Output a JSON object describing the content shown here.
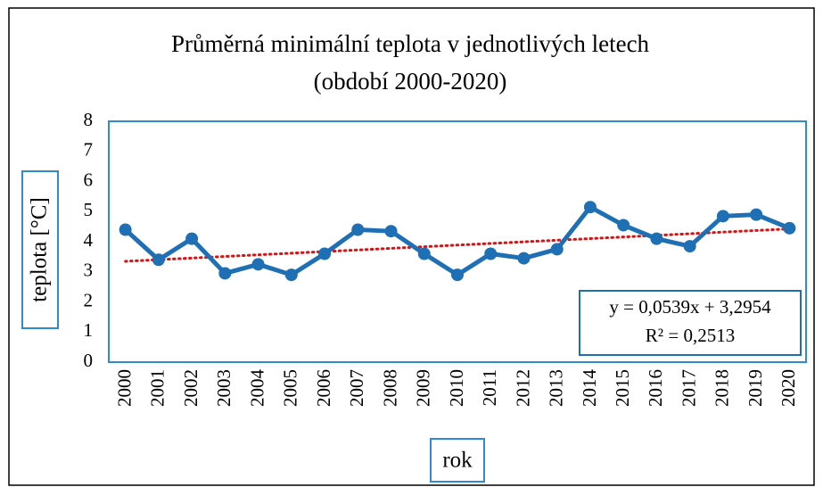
{
  "chart_data": {
    "type": "line",
    "title": "Průměrná minimální teplota v jednotlivých letech",
    "subtitle": "(období 2000-2020)",
    "y_label": "teplota [°C]",
    "x_label": "rok",
    "categories": [
      "2000",
      "2001",
      "2002",
      "2003",
      "2004",
      "2005",
      "2006",
      "2007",
      "2008",
      "2009",
      "2010",
      "2011",
      "2012",
      "2013",
      "2014",
      "2015",
      "2016",
      "2017",
      "2018",
      "2019",
      "2020"
    ],
    "series": [
      {
        "name": "teplota",
        "color": "#1f6fb5",
        "values": [
          4.4,
          3.4,
          4.1,
          2.95,
          3.25,
          2.9,
          3.6,
          4.4,
          4.35,
          3.6,
          2.9,
          3.6,
          3.45,
          3.75,
          5.15,
          4.55,
          4.1,
          3.85,
          4.85,
          4.9,
          4.45
        ]
      }
    ],
    "trendline": {
      "slope": 0.0539,
      "intercept": 3.2954,
      "color": "#e01010",
      "equation": "y = 0,0539x + 3,2954",
      "r_squared": "R² = 0,2513"
    },
    "ylim": [
      0,
      8
    ],
    "yticks": [
      0,
      1,
      2,
      3,
      4,
      5,
      6,
      7,
      8
    ],
    "grid": false
  }
}
